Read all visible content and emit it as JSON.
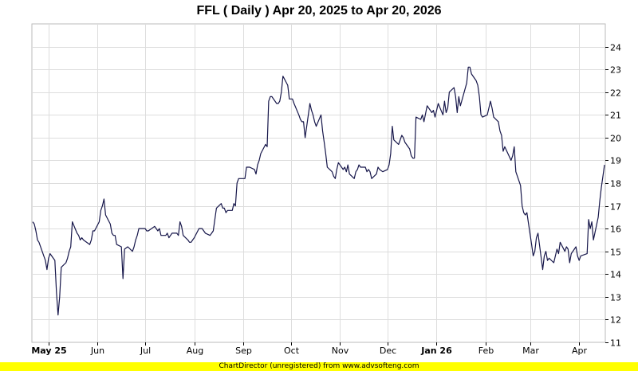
{
  "chart_data": {
    "type": "line",
    "title": "FFL ( Daily ) Apr 20, 2025 to Apr 20, 2026",
    "xlabel": "",
    "ylabel": "",
    "ylim": [
      11,
      25
    ],
    "y_ticks": [
      11,
      12,
      13,
      14,
      15,
      16,
      17,
      18,
      19,
      20,
      21,
      22,
      23,
      24
    ],
    "y_axis_side": "right",
    "grid": true,
    "x_ticks": [
      {
        "label": "May 25",
        "date": "2025-05-01",
        "bold": true
      },
      {
        "label": "Jun",
        "date": "2025-06-01",
        "bold": false
      },
      {
        "label": "Jul",
        "date": "2025-07-01",
        "bold": false
      },
      {
        "label": "Aug",
        "date": "2025-08-01",
        "bold": false
      },
      {
        "label": "Sep",
        "date": "2025-09-01",
        "bold": false
      },
      {
        "label": "Oct",
        "date": "2025-10-01",
        "bold": false
      },
      {
        "label": "Nov",
        "date": "2025-11-01",
        "bold": false
      },
      {
        "label": "Dec",
        "date": "2025-12-01",
        "bold": false
      },
      {
        "label": "Jan 26",
        "date": "2026-01-01",
        "bold": true
      },
      {
        "label": "Feb",
        "date": "2026-02-01",
        "bold": false
      },
      {
        "label": "Mar",
        "date": "2026-03-01",
        "bold": false
      },
      {
        "label": "Apr",
        "date": "2026-04-01",
        "bold": false
      }
    ],
    "series": [
      {
        "color": "#16164a",
        "points": [
          [
            "2025-04-21",
            16.3
          ],
          [
            "2025-04-22",
            16.2
          ],
          [
            "2025-04-23",
            15.9
          ],
          [
            "2025-04-24",
            15.5
          ],
          [
            "2025-04-25",
            15.4
          ],
          [
            "2025-04-28",
            14.8
          ],
          [
            "2025-04-29",
            14.6
          ],
          [
            "2025-04-30",
            14.2
          ],
          [
            "2025-05-01",
            14.7
          ],
          [
            "2025-05-02",
            14.9
          ],
          [
            "2025-05-05",
            14.6
          ],
          [
            "2025-05-06",
            13.2
          ],
          [
            "2025-05-07",
            12.2
          ],
          [
            "2025-05-08",
            13.0
          ],
          [
            "2025-05-09",
            14.3
          ],
          [
            "2025-05-12",
            14.5
          ],
          [
            "2025-05-13",
            14.7
          ],
          [
            "2025-05-14",
            15.0
          ],
          [
            "2025-05-15",
            15.2
          ],
          [
            "2025-05-16",
            16.3
          ],
          [
            "2025-05-19",
            15.8
          ],
          [
            "2025-05-20",
            15.7
          ],
          [
            "2025-05-21",
            15.5
          ],
          [
            "2025-05-22",
            15.6
          ],
          [
            "2025-05-23",
            15.5
          ],
          [
            "2025-05-27",
            15.3
          ],
          [
            "2025-05-28",
            15.5
          ],
          [
            "2025-05-29",
            15.9
          ],
          [
            "2025-05-30",
            15.9
          ],
          [
            "2025-06-02",
            16.3
          ],
          [
            "2025-06-03",
            16.8
          ],
          [
            "2025-06-04",
            17.0
          ],
          [
            "2025-06-05",
            17.3
          ],
          [
            "2025-06-06",
            16.6
          ],
          [
            "2025-06-09",
            16.2
          ],
          [
            "2025-06-10",
            15.8
          ],
          [
            "2025-06-11",
            15.7
          ],
          [
            "2025-06-12",
            15.7
          ],
          [
            "2025-06-13",
            15.3
          ],
          [
            "2025-06-16",
            15.2
          ],
          [
            "2025-06-17",
            13.8
          ],
          [
            "2025-06-18",
            15.1
          ],
          [
            "2025-06-20",
            15.2
          ],
          [
            "2025-06-23",
            15.0
          ],
          [
            "2025-06-24",
            15.2
          ],
          [
            "2025-06-25",
            15.5
          ],
          [
            "2025-06-26",
            15.7
          ],
          [
            "2025-06-27",
            16.0
          ],
          [
            "2025-06-30",
            16.0
          ],
          [
            "2025-07-01",
            16.0
          ],
          [
            "2025-07-02",
            15.9
          ],
          [
            "2025-07-03",
            15.9
          ],
          [
            "2025-07-07",
            16.1
          ],
          [
            "2025-07-08",
            16.0
          ],
          [
            "2025-07-09",
            15.9
          ],
          [
            "2025-07-10",
            16.0
          ],
          [
            "2025-07-11",
            15.7
          ],
          [
            "2025-07-14",
            15.7
          ],
          [
            "2025-07-15",
            15.8
          ],
          [
            "2025-07-16",
            15.6
          ],
          [
            "2025-07-17",
            15.7
          ],
          [
            "2025-07-18",
            15.8
          ],
          [
            "2025-07-21",
            15.8
          ],
          [
            "2025-07-22",
            15.7
          ],
          [
            "2025-07-23",
            16.3
          ],
          [
            "2025-07-24",
            16.1
          ],
          [
            "2025-07-25",
            15.7
          ],
          [
            "2025-07-28",
            15.5
          ],
          [
            "2025-07-29",
            15.4
          ],
          [
            "2025-07-30",
            15.4
          ],
          [
            "2025-07-31",
            15.5
          ],
          [
            "2025-08-01",
            15.6
          ],
          [
            "2025-08-04",
            16.0
          ],
          [
            "2025-08-05",
            16.0
          ],
          [
            "2025-08-06",
            16.0
          ],
          [
            "2025-08-07",
            15.9
          ],
          [
            "2025-08-08",
            15.8
          ],
          [
            "2025-08-11",
            15.7
          ],
          [
            "2025-08-12",
            15.8
          ],
          [
            "2025-08-13",
            15.9
          ],
          [
            "2025-08-14",
            16.4
          ],
          [
            "2025-08-15",
            16.9
          ],
          [
            "2025-08-18",
            17.1
          ],
          [
            "2025-08-19",
            16.9
          ],
          [
            "2025-08-20",
            16.9
          ],
          [
            "2025-08-21",
            16.7
          ],
          [
            "2025-08-22",
            16.8
          ],
          [
            "2025-08-25",
            16.8
          ],
          [
            "2025-08-26",
            17.1
          ],
          [
            "2025-08-27",
            17.0
          ],
          [
            "2025-08-28",
            18.0
          ],
          [
            "2025-08-29",
            18.2
          ],
          [
            "2025-09-02",
            18.2
          ],
          [
            "2025-09-03",
            18.7
          ],
          [
            "2025-09-04",
            18.7
          ],
          [
            "2025-09-05",
            18.7
          ],
          [
            "2025-09-08",
            18.6
          ],
          [
            "2025-09-09",
            18.4
          ],
          [
            "2025-09-10",
            18.8
          ],
          [
            "2025-09-11",
            19.0
          ],
          [
            "2025-09-12",
            19.3
          ],
          [
            "2025-09-15",
            19.7
          ],
          [
            "2025-09-16",
            19.6
          ],
          [
            "2025-09-17",
            21.6
          ],
          [
            "2025-09-18",
            21.8
          ],
          [
            "2025-09-19",
            21.8
          ],
          [
            "2025-09-22",
            21.5
          ],
          [
            "2025-09-23",
            21.5
          ],
          [
            "2025-09-24",
            21.6
          ],
          [
            "2025-09-25",
            22.0
          ],
          [
            "2025-09-26",
            22.7
          ],
          [
            "2025-09-29",
            22.3
          ],
          [
            "2025-09-30",
            21.7
          ],
          [
            "2025-10-01",
            21.7
          ],
          [
            "2025-10-02",
            21.7
          ],
          [
            "2025-10-03",
            21.5
          ],
          [
            "2025-10-06",
            21.0
          ],
          [
            "2025-10-07",
            20.8
          ],
          [
            "2025-10-08",
            20.7
          ],
          [
            "2025-10-09",
            20.7
          ],
          [
            "2025-10-10",
            20.0
          ],
          [
            "2025-10-13",
            21.5
          ],
          [
            "2025-10-14",
            21.2
          ],
          [
            "2025-10-15",
            21.0
          ],
          [
            "2025-10-16",
            20.7
          ],
          [
            "2025-10-17",
            20.5
          ],
          [
            "2025-10-20",
            21.0
          ],
          [
            "2025-10-21",
            20.3
          ],
          [
            "2025-10-22",
            19.8
          ],
          [
            "2025-10-23",
            19.3
          ],
          [
            "2025-10-24",
            18.7
          ],
          [
            "2025-10-27",
            18.5
          ],
          [
            "2025-10-28",
            18.3
          ],
          [
            "2025-10-29",
            18.2
          ],
          [
            "2025-10-30",
            18.6
          ],
          [
            "2025-10-31",
            18.9
          ],
          [
            "2025-11-03",
            18.6
          ],
          [
            "2025-11-04",
            18.7
          ],
          [
            "2025-11-05",
            18.5
          ],
          [
            "2025-11-06",
            18.8
          ],
          [
            "2025-11-07",
            18.4
          ],
          [
            "2025-11-10",
            18.2
          ],
          [
            "2025-11-11",
            18.5
          ],
          [
            "2025-11-12",
            18.6
          ],
          [
            "2025-11-13",
            18.8
          ],
          [
            "2025-11-14",
            18.7
          ],
          [
            "2025-11-17",
            18.7
          ],
          [
            "2025-11-18",
            18.5
          ],
          [
            "2025-11-19",
            18.6
          ],
          [
            "2025-11-20",
            18.5
          ],
          [
            "2025-11-21",
            18.2
          ],
          [
            "2025-11-24",
            18.4
          ],
          [
            "2025-11-25",
            18.7
          ],
          [
            "2025-11-26",
            18.6
          ],
          [
            "2025-11-28",
            18.5
          ],
          [
            "2025-12-01",
            18.6
          ],
          [
            "2025-12-02",
            18.8
          ],
          [
            "2025-12-03",
            19.3
          ],
          [
            "2025-12-04",
            20.5
          ],
          [
            "2025-12-05",
            19.9
          ],
          [
            "2025-12-08",
            19.7
          ],
          [
            "2025-12-09",
            19.9
          ],
          [
            "2025-12-10",
            20.1
          ],
          [
            "2025-12-11",
            20.0
          ],
          [
            "2025-12-12",
            19.8
          ],
          [
            "2025-12-15",
            19.5
          ],
          [
            "2025-12-16",
            19.2
          ],
          [
            "2025-12-17",
            19.1
          ],
          [
            "2025-12-18",
            19.1
          ],
          [
            "2025-12-19",
            20.9
          ],
          [
            "2025-12-22",
            20.8
          ],
          [
            "2025-12-23",
            21.0
          ],
          [
            "2025-12-24",
            20.7
          ],
          [
            "2025-12-26",
            21.4
          ],
          [
            "2025-12-29",
            21.1
          ],
          [
            "2025-12-30",
            21.2
          ],
          [
            "2025-12-31",
            20.9
          ],
          [
            "2026-01-02",
            21.5
          ],
          [
            "2026-01-05",
            21.0
          ],
          [
            "2026-01-06",
            21.6
          ],
          [
            "2026-01-07",
            21.1
          ],
          [
            "2026-01-08",
            21.3
          ],
          [
            "2026-01-09",
            22.0
          ],
          [
            "2026-01-12",
            22.2
          ],
          [
            "2026-01-13",
            21.8
          ],
          [
            "2026-01-14",
            21.1
          ],
          [
            "2026-01-15",
            21.8
          ],
          [
            "2026-01-16",
            21.4
          ],
          [
            "2026-01-20",
            22.4
          ],
          [
            "2026-01-21",
            23.1
          ],
          [
            "2026-01-22",
            23.1
          ],
          [
            "2026-01-23",
            22.8
          ],
          [
            "2026-01-26",
            22.5
          ],
          [
            "2026-01-27",
            22.3
          ],
          [
            "2026-01-28",
            21.8
          ],
          [
            "2026-01-29",
            21.0
          ],
          [
            "2026-01-30",
            20.9
          ],
          [
            "2026-02-02",
            21.0
          ],
          [
            "2026-02-03",
            21.3
          ],
          [
            "2026-02-04",
            21.6
          ],
          [
            "2026-02-05",
            21.3
          ],
          [
            "2026-02-06",
            20.9
          ],
          [
            "2026-02-09",
            20.7
          ],
          [
            "2026-02-10",
            20.3
          ],
          [
            "2026-02-11",
            20.1
          ],
          [
            "2026-02-12",
            19.4
          ],
          [
            "2026-02-13",
            19.6
          ],
          [
            "2026-02-17",
            19.0
          ],
          [
            "2026-02-18",
            19.2
          ],
          [
            "2026-02-19",
            19.6
          ],
          [
            "2026-02-20",
            18.5
          ],
          [
            "2026-02-23",
            17.9
          ],
          [
            "2026-02-24",
            17.0
          ],
          [
            "2026-02-25",
            16.7
          ],
          [
            "2026-02-26",
            16.6
          ],
          [
            "2026-02-27",
            16.7
          ],
          [
            "2026-03-02",
            15.3
          ],
          [
            "2026-03-03",
            14.8
          ],
          [
            "2026-03-04",
            15.0
          ],
          [
            "2026-03-05",
            15.6
          ],
          [
            "2026-03-06",
            15.8
          ],
          [
            "2026-03-09",
            14.2
          ],
          [
            "2026-03-10",
            14.8
          ],
          [
            "2026-03-11",
            15.0
          ],
          [
            "2026-03-12",
            14.6
          ],
          [
            "2026-03-13",
            14.7
          ],
          [
            "2026-03-16",
            14.5
          ],
          [
            "2026-03-17",
            14.8
          ],
          [
            "2026-03-18",
            15.1
          ],
          [
            "2026-03-19",
            14.9
          ],
          [
            "2026-03-20",
            15.4
          ],
          [
            "2026-03-23",
            15.0
          ],
          [
            "2026-03-24",
            15.2
          ],
          [
            "2026-03-25",
            15.1
          ],
          [
            "2026-03-26",
            14.5
          ],
          [
            "2026-03-27",
            14.9
          ],
          [
            "2026-03-30",
            15.2
          ],
          [
            "2026-03-31",
            14.8
          ],
          [
            "2026-04-01",
            14.6
          ],
          [
            "2026-04-02",
            14.8
          ],
          [
            "2026-04-06",
            14.9
          ],
          [
            "2026-04-07",
            16.4
          ],
          [
            "2026-04-08",
            16.0
          ],
          [
            "2026-04-09",
            16.3
          ],
          [
            "2026-04-10",
            15.5
          ],
          [
            "2026-04-13",
            16.5
          ],
          [
            "2026-04-14",
            17.2
          ],
          [
            "2026-04-15",
            17.8
          ],
          [
            "2026-04-16",
            18.3
          ],
          [
            "2026-04-17",
            18.8
          ]
        ]
      }
    ],
    "footer": "ChartDirector (unregistered) from www.advsofteng.com"
  }
}
